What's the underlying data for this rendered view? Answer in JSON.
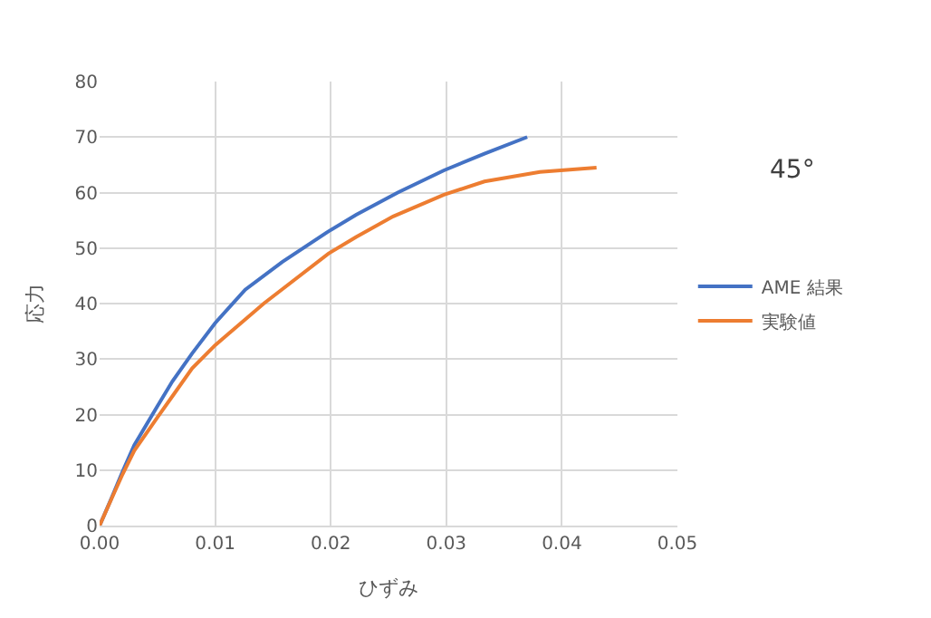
{
  "chart_data": {
    "type": "line",
    "xlabel": "ひずみ",
    "ylabel": "応力",
    "annotations": [
      "45°"
    ],
    "xlim": [
      0,
      0.05
    ],
    "xticks": [
      {
        "value": 0,
        "label": "0.00"
      },
      {
        "value": 0.01,
        "label": "0.01"
      },
      {
        "value": 0.02,
        "label": "0.02"
      },
      {
        "value": 0.03,
        "label": "0.03"
      },
      {
        "value": 0.04,
        "label": "0.04"
      },
      {
        "value": 0.05,
        "label": "0.05"
      }
    ],
    "ylim": [
      0,
      80
    ],
    "yticks": [
      0,
      10,
      20,
      30,
      40,
      50,
      60,
      70,
      80
    ],
    "grid": true,
    "legend": "right",
    "marker": "none",
    "line_style": "solid",
    "series": [
      {
        "name": "AME 結果",
        "color": "#4472c4",
        "x": [
          0,
          0.001,
          0.002,
          0.003,
          0.005,
          0.0063,
          0.008,
          0.01,
          0.0126,
          0.0158,
          0.0198,
          0.0222,
          0.0258,
          0.0298,
          0.0333,
          0.037
        ],
        "values": [
          0,
          4.8,
          9.8,
          14.5,
          21.5,
          26,
          31,
          36.5,
          42.5,
          47.5,
          53,
          56,
          60,
          64,
          67,
          70
        ]
      },
      {
        "name": "実験値",
        "color": "#ed7d31",
        "x": [
          0,
          0.001,
          0.002,
          0.003,
          0.005,
          0.0063,
          0.008,
          0.01,
          0.0142,
          0.0198,
          0.0222,
          0.0254,
          0.0298,
          0.0333,
          0.0381,
          0.043
        ],
        "values": [
          0,
          4.7,
          9.3,
          13.5,
          19.5,
          23.3,
          28.3,
          32.5,
          40,
          49,
          52,
          55.7,
          59.6,
          62,
          63.7,
          64.5
        ]
      }
    ]
  }
}
